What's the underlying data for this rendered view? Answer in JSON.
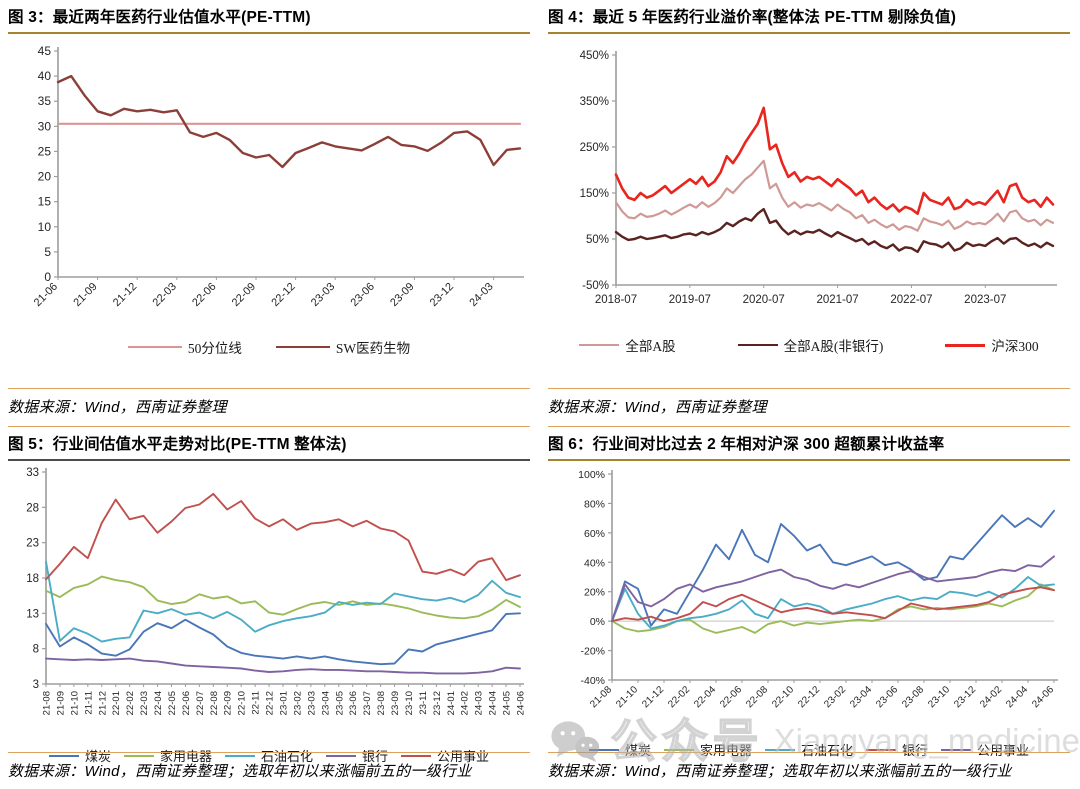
{
  "figures": [
    {
      "title": "图 3：最近两年医药行业估值水平(PE-TTM)",
      "source": "数据来源：Wind，西南证券整理"
    },
    {
      "title": "图 4：最近 5 年医药行业溢价率(整体法 PE-TTM 剔除负值)",
      "source": "数据来源：Wind，西南证券整理"
    },
    {
      "title": "图 5：行业间估值水平走势对比(PE-TTM 整体法)",
      "source": "数据来源：Wind，西南证券整理；选取年初以来涨幅前五的一级行业"
    },
    {
      "title": "图 6：行业间对比过去 2 年相对沪深 300 超额累计收益率",
      "source": "数据来源：Wind，西南证券整理；选取年初以来涨幅前五的一级行业"
    }
  ],
  "watermark": {
    "icon": "wechat-icon",
    "prefix": "公众号",
    "handle": "Xiangyang_medicine",
    "color": "#bdbdbd"
  },
  "style_colors": {
    "title_rule_gold": "#a5832f",
    "title_rule_dark": "#4b4b4b",
    "separator": "#dda25d",
    "axis": "#9d9d9d"
  },
  "chart_data": [
    {
      "type": "line",
      "title": "最近两年医药行业估值水平(PE-TTM)",
      "xlabel": "",
      "ylabel": "",
      "x_count": 36,
      "x_tick_step": 3,
      "x_tick_labels": [
        "21-06",
        "21-09",
        "21-12",
        "22-03",
        "22-06",
        "22-09",
        "22-12",
        "23-03",
        "23-06",
        "23-09",
        "23-12",
        "24-03"
      ],
      "ylim": [
        0,
        45
      ],
      "y_tick_values": [
        0,
        5,
        10,
        15,
        20,
        25,
        30,
        35,
        40,
        45
      ],
      "y_tick_labels": [
        "0",
        "5",
        "10",
        "15",
        "20",
        "25",
        "30",
        "35",
        "40",
        "45"
      ],
      "zero_line": false,
      "legend_position": "bottom",
      "series": [
        {
          "name": "50分位线",
          "color": "#d99694",
          "width": 2.2,
          "constant": 30.5
        },
        {
          "name": "SW医药生物",
          "color": "#8c3f39",
          "width": 2.4,
          "values": [
            38.8,
            40.0,
            36.2,
            33.0,
            32.2,
            33.5,
            33.0,
            33.3,
            32.8,
            33.2,
            28.8,
            27.9,
            28.7,
            27.3,
            24.7,
            23.8,
            24.3,
            21.9,
            24.7,
            25.7,
            26.8,
            26.0,
            25.6,
            25.2,
            26.5,
            27.9,
            26.3,
            26.0,
            25.1,
            26.7,
            28.7,
            29.0,
            27.3,
            22.3,
            25.3,
            25.6
          ]
        }
      ]
    },
    {
      "type": "line",
      "title": "最近 5 年医药行业溢价率(整体法 PE-TTM 剔除负值)",
      "xlabel": "",
      "ylabel": "",
      "x_count": 72,
      "x_tick_step": 12,
      "x_tick_labels": [
        "2018-07",
        "2019-07",
        "2020-07",
        "2021-07",
        "2022-07",
        "2023-07"
      ],
      "ylim": [
        -50,
        450
      ],
      "y_tick_values": [
        -50,
        50,
        150,
        250,
        350,
        450
      ],
      "y_tick_labels": [
        "-50%",
        "50%",
        "150%",
        "250%",
        "350%",
        "450%"
      ],
      "zero_line": false,
      "legend_position": "bottom",
      "series": [
        {
          "name": "全部A股",
          "color": "#cf9a96",
          "width": 2.2,
          "values": [
            130,
            110,
            97,
            95,
            105,
            98,
            100,
            105,
            112,
            103,
            110,
            118,
            125,
            118,
            130,
            120,
            128,
            140,
            160,
            150,
            165,
            180,
            190,
            205,
            220,
            160,
            170,
            140,
            120,
            130,
            118,
            125,
            122,
            128,
            120,
            112,
            125,
            115,
            108,
            95,
            102,
            85,
            92,
            82,
            75,
            82,
            70,
            78,
            75,
            68,
            95,
            88,
            85,
            80,
            90,
            72,
            78,
            88,
            82,
            85,
            82,
            92,
            105,
            88,
            108,
            112,
            95,
            88,
            92,
            80,
            92,
            85
          ]
        },
        {
          "name": "全部A股(非银行)",
          "color": "#5a2320",
          "width": 2.4,
          "values": [
            65,
            55,
            48,
            50,
            55,
            50,
            52,
            55,
            58,
            52,
            55,
            60,
            62,
            58,
            65,
            60,
            65,
            72,
            85,
            78,
            88,
            95,
            90,
            105,
            115,
            85,
            90,
            72,
            60,
            68,
            60,
            66,
            64,
            70,
            62,
            55,
            65,
            58,
            52,
            45,
            50,
            38,
            45,
            35,
            30,
            38,
            25,
            32,
            30,
            22,
            45,
            40,
            38,
            32,
            42,
            25,
            30,
            42,
            35,
            38,
            35,
            45,
            52,
            40,
            50,
            52,
            42,
            35,
            40,
            32,
            42,
            35
          ]
        },
        {
          "name": "沪深300",
          "color": "#e8251e",
          "width": 2.6,
          "values": [
            190,
            160,
            140,
            135,
            150,
            140,
            145,
            155,
            165,
            150,
            160,
            170,
            180,
            170,
            185,
            165,
            175,
            195,
            230,
            215,
            235,
            260,
            280,
            300,
            335,
            245,
            255,
            215,
            185,
            195,
            175,
            185,
            180,
            185,
            175,
            165,
            180,
            170,
            160,
            145,
            155,
            130,
            140,
            125,
            115,
            125,
            110,
            120,
            115,
            105,
            150,
            135,
            130,
            125,
            140,
            115,
            120,
            135,
            125,
            130,
            125,
            140,
            155,
            130,
            165,
            170,
            140,
            130,
            135,
            120,
            140,
            125
          ]
        }
      ]
    },
    {
      "type": "line",
      "title": "行业间估值水平走势对比(PE-TTM 整体法)",
      "xlabel": "",
      "ylabel": "",
      "x_count": 35,
      "x_tick_step": 1,
      "x_tick_labels": [
        "21-08",
        "21-09",
        "21-10",
        "21-11",
        "21-12",
        "22-01",
        "22-02",
        "22-03",
        "22-04",
        "22-05",
        "22-06",
        "22-07",
        "22-08",
        "22-09",
        "22-10",
        "22-11",
        "22-12",
        "23-01",
        "23-02",
        "23-03",
        "23-04",
        "23-05",
        "23-06",
        "23-07",
        "23-08",
        "23-09",
        "23-10",
        "23-11",
        "23-12",
        "24-01",
        "24-02",
        "24-03",
        "24-04",
        "24-05",
        "24-06"
      ],
      "ylim": [
        3,
        33
      ],
      "y_tick_values": [
        3,
        8,
        13,
        18,
        23,
        28,
        33
      ],
      "y_tick_labels": [
        "3",
        "8",
        "13",
        "18",
        "23",
        "28",
        "33"
      ],
      "zero_line": false,
      "legend_position": "bottom",
      "series": [
        {
          "name": "煤炭",
          "color": "#4a76b8",
          "width": 1.9,
          "values": [
            11.5,
            8.3,
            9.6,
            8.6,
            7.3,
            7.0,
            7.9,
            10.4,
            11.6,
            10.9,
            12.1,
            11.0,
            10.0,
            8.3,
            7.4,
            7.0,
            6.8,
            6.6,
            6.9,
            6.6,
            6.9,
            6.5,
            6.2,
            6.0,
            5.8,
            5.9,
            7.9,
            7.6,
            8.6,
            9.1,
            9.6,
            10.1,
            10.6,
            12.9,
            13.0
          ]
        },
        {
          "name": "家用电器",
          "color": "#9bbb59",
          "width": 1.9,
          "values": [
            16.2,
            15.3,
            16.6,
            17.1,
            18.2,
            17.7,
            17.4,
            16.7,
            14.8,
            14.3,
            14.6,
            15.7,
            15.1,
            15.4,
            14.4,
            14.7,
            13.1,
            12.8,
            13.6,
            14.3,
            14.6,
            14.2,
            14.7,
            14.2,
            14.4,
            14.1,
            13.7,
            13.1,
            12.7,
            12.4,
            12.3,
            12.6,
            13.5,
            14.9,
            13.9
          ]
        },
        {
          "name": "石油石化",
          "color": "#4bacc6",
          "width": 1.9,
          "values": [
            20.3,
            9.1,
            10.9,
            10.1,
            9.0,
            9.4,
            9.6,
            13.4,
            13.0,
            13.6,
            12.8,
            13.1,
            12.3,
            13.2,
            12.1,
            10.4,
            11.3,
            11.9,
            12.3,
            12.6,
            13.1,
            14.6,
            14.2,
            14.5,
            14.3,
            15.8,
            15.4,
            15.0,
            14.8,
            15.2,
            14.6,
            15.6,
            17.6,
            15.9,
            15.3
          ]
        },
        {
          "name": "银行",
          "color": "#7f63a1",
          "width": 1.9,
          "values": [
            6.6,
            6.5,
            6.4,
            6.5,
            6.4,
            6.5,
            6.6,
            6.3,
            6.2,
            5.9,
            5.6,
            5.5,
            5.4,
            5.3,
            5.2,
            4.9,
            4.7,
            4.8,
            5.0,
            5.1,
            5.0,
            5.0,
            4.9,
            4.8,
            4.8,
            4.7,
            4.6,
            4.6,
            4.5,
            4.5,
            4.5,
            4.6,
            4.8,
            5.3,
            5.2
          ]
        },
        {
          "name": "公用事业",
          "color": "#c0504d",
          "width": 1.9,
          "values": [
            17.8,
            20.0,
            22.4,
            20.8,
            25.8,
            29.1,
            26.3,
            26.8,
            24.4,
            26.0,
            27.9,
            28.4,
            29.9,
            27.7,
            28.9,
            26.4,
            25.3,
            26.3,
            24.8,
            25.7,
            25.9,
            26.3,
            25.3,
            26.1,
            25.0,
            24.6,
            23.3,
            18.9,
            18.6,
            19.2,
            18.4,
            20.3,
            20.8,
            17.7,
            18.4
          ]
        }
      ]
    },
    {
      "type": "line",
      "title": "行业间对比过去 2 年相对沪深 300 超额累计收益率",
      "xlabel": "",
      "ylabel": "",
      "x_count": 35,
      "x_tick_step": 2,
      "x_tick_labels": [
        "21-08",
        "21-10",
        "21-12",
        "22-02",
        "22-04",
        "22-06",
        "22-08",
        "22-10",
        "22-12",
        "23-02",
        "23-04",
        "23-06",
        "23-08",
        "23-10",
        "23-12",
        "24-02",
        "24-04",
        "24-06"
      ],
      "ylim": [
        -40,
        100
      ],
      "y_tick_values": [
        -40,
        -20,
        0,
        20,
        40,
        60,
        80,
        100
      ],
      "y_tick_labels": [
        "-40%",
        "-20%",
        "0%",
        "20%",
        "40%",
        "60%",
        "80%",
        "100%"
      ],
      "zero_line": true,
      "legend_position": "bottom",
      "series": [
        {
          "name": "煤炭",
          "color": "#4a76b8",
          "width": 1.9,
          "values": [
            0,
            27,
            22,
            -3,
            8,
            5,
            20,
            35,
            52,
            42,
            62,
            45,
            40,
            66,
            58,
            48,
            52,
            40,
            38,
            41,
            44,
            38,
            40,
            35,
            28,
            30,
            44,
            42,
            52,
            62,
            72,
            64,
            70,
            64,
            75
          ]
        },
        {
          "name": "家用电器",
          "color": "#9bbb59",
          "width": 1.9,
          "values": [
            0,
            -5,
            -7,
            -6,
            -4,
            0,
            1,
            -5,
            -8,
            -6,
            -4,
            -8,
            -2,
            0,
            -3,
            -1,
            -2,
            -1,
            0,
            1,
            0,
            2,
            8,
            10,
            8,
            9,
            8,
            9,
            10,
            12,
            10,
            14,
            17,
            25,
            21
          ]
        },
        {
          "name": "石油石化",
          "color": "#4bacc6",
          "width": 1.9,
          "values": [
            0,
            22,
            5,
            -5,
            -3,
            0,
            2,
            3,
            5,
            8,
            14,
            5,
            2,
            15,
            10,
            12,
            10,
            5,
            8,
            10,
            12,
            15,
            17,
            14,
            16,
            15,
            20,
            19,
            17,
            20,
            16,
            22,
            30,
            24,
            25
          ]
        },
        {
          "name": "银行",
          "color": "#c0504d",
          "width": 1.9,
          "values": [
            0,
            2,
            1,
            3,
            0,
            2,
            5,
            13,
            10,
            15,
            18,
            14,
            10,
            6,
            8,
            9,
            7,
            5,
            6,
            5,
            4,
            2,
            7,
            12,
            10,
            8,
            9,
            10,
            11,
            13,
            18,
            20,
            22,
            23,
            21
          ]
        },
        {
          "name": "公用事业",
          "color": "#7f63a1",
          "width": 1.9,
          "values": [
            0,
            25,
            13,
            10,
            15,
            22,
            25,
            20,
            23,
            25,
            27,
            30,
            33,
            35,
            30,
            28,
            24,
            22,
            25,
            23,
            26,
            29,
            32,
            34,
            30,
            27,
            28,
            29,
            30,
            33,
            35,
            34,
            38,
            37,
            44
          ]
        }
      ]
    }
  ]
}
